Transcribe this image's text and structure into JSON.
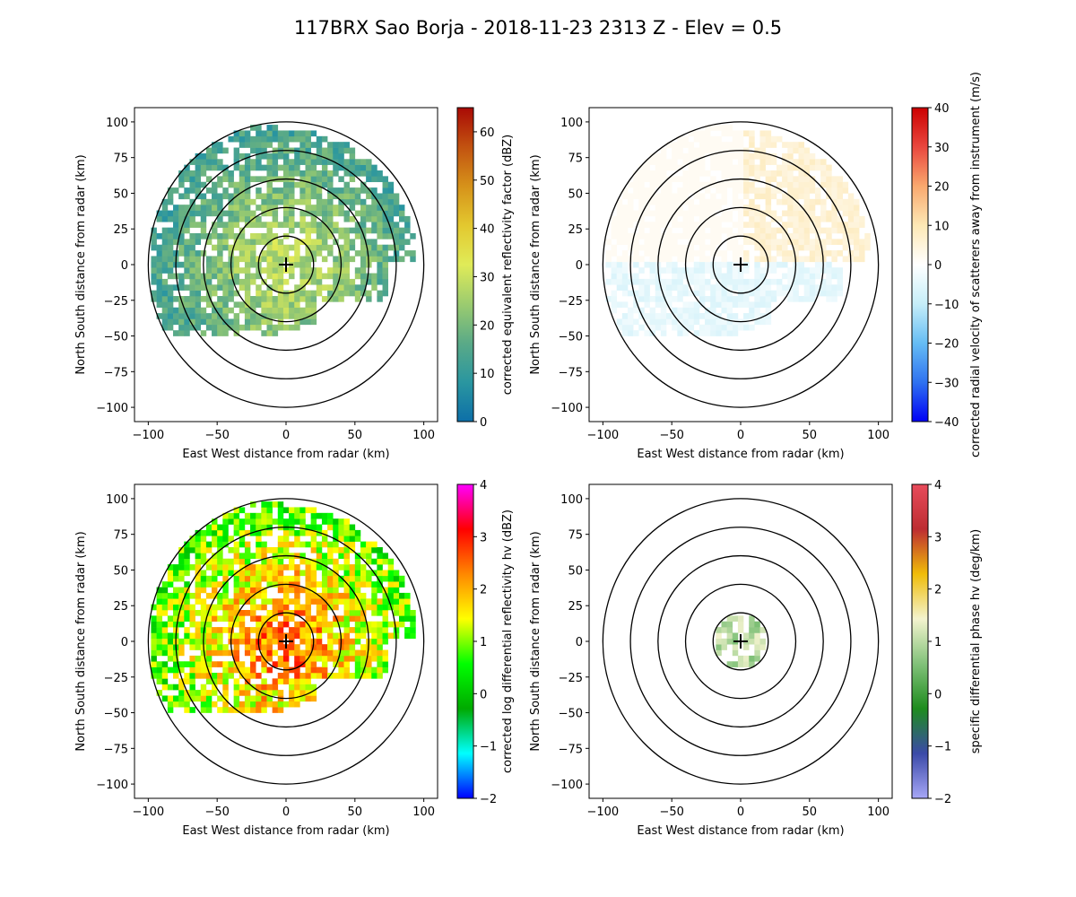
{
  "title": "117BRX Sao Borja - 2018-11-23 2313 Z -  Elev = 0.5",
  "chart_data": [
    {
      "type": "heatmap",
      "name": "reflectivity",
      "xlabel": "East West distance from radar (km)",
      "ylabel": "North South distance from radar (km)",
      "xlim": [
        -110,
        110
      ],
      "ylim": [
        -110,
        110
      ],
      "xticks": [
        -100,
        -50,
        0,
        50,
        100
      ],
      "yticks": [
        100,
        75,
        50,
        25,
        0,
        -25,
        -50,
        -75,
        -100
      ],
      "range_rings_km": [
        20,
        40,
        60,
        80,
        100
      ],
      "colorbar": {
        "label": "corrected equivalent reflectivity factor (dBZ)",
        "range": [
          0,
          65
        ],
        "ticks": [
          0,
          10,
          20,
          30,
          40,
          50,
          60
        ],
        "colors": [
          "#0d6fa8",
          "#2a96a0",
          "#5aaa87",
          "#9ccc6f",
          "#e0eb58",
          "#e3c82f",
          "#d6921a",
          "#c25210",
          "#a90a05"
        ]
      }
    },
    {
      "type": "heatmap",
      "name": "velocity",
      "xlabel": "East West distance from radar (km)",
      "ylabel": "North South distance from radar (km)",
      "xlim": [
        -110,
        110
      ],
      "ylim": [
        -110,
        110
      ],
      "xticks": [
        -100,
        -50,
        0,
        50,
        100
      ],
      "yticks": [
        100,
        75,
        50,
        25,
        0,
        -25,
        -50,
        -75,
        -100
      ],
      "range_rings_km": [
        20,
        40,
        60,
        80,
        100
      ],
      "colorbar": {
        "label": "corrected radial velocity of scatterers away from instrument (m/s)",
        "range": [
          -40,
          40
        ],
        "ticks": [
          -40,
          -30,
          -20,
          -10,
          0,
          10,
          20,
          30,
          40
        ],
        "colors": [
          "#0000f5",
          "#2f72f0",
          "#66bdf4",
          "#c6eef8",
          "#ffffff",
          "#fde8b5",
          "#f9a86e",
          "#e9473e",
          "#cc0000"
        ]
      }
    },
    {
      "type": "heatmap",
      "name": "differential_reflectivity",
      "xlabel": "East West distance from radar (km)",
      "ylabel": "North South distance from radar (km)",
      "xlim": [
        -110,
        110
      ],
      "ylim": [
        -110,
        110
      ],
      "xticks": [
        -100,
        -50,
        0,
        50,
        100
      ],
      "yticks": [
        100,
        75,
        50,
        25,
        0,
        -25,
        -50,
        -75,
        -100
      ],
      "range_rings_km": [
        20,
        40,
        60,
        80,
        100
      ],
      "colorbar": {
        "label": "corrected log differential reflectivity hv (dBZ)",
        "range": [
          -2,
          4
        ],
        "ticks": [
          -2,
          -1,
          0,
          1,
          2,
          3,
          4
        ],
        "colors": [
          "#0000ff",
          "#00ffff",
          "#00aa00",
          "#00ff00",
          "#ffff00",
          "#ff8800",
          "#ff0000",
          "#ff00ff"
        ]
      }
    },
    {
      "type": "heatmap",
      "name": "specific_differential_phase",
      "xlabel": "East West distance from radar (km)",
      "ylabel": "North South distance from radar (km)",
      "xlim": [
        -110,
        110
      ],
      "ylim": [
        -110,
        110
      ],
      "xticks": [
        -100,
        -50,
        0,
        50,
        100
      ],
      "yticks": [
        100,
        75,
        50,
        25,
        0,
        -25,
        -50,
        -75,
        -100
      ],
      "range_rings_km": [
        20,
        40,
        60,
        80,
        100
      ],
      "colorbar": {
        "label": "specific differential phase hv (deg/km)",
        "range": [
          -2,
          4
        ],
        "ticks": [
          -2,
          -1,
          0,
          1,
          2,
          3,
          4
        ],
        "colors": [
          "#a7a7f7",
          "#3b4aa8",
          "#1e8c1e",
          "#82c27a",
          "#f3f3ce",
          "#f0bd08",
          "#bd2d32",
          "#e84b5b"
        ]
      }
    }
  ]
}
